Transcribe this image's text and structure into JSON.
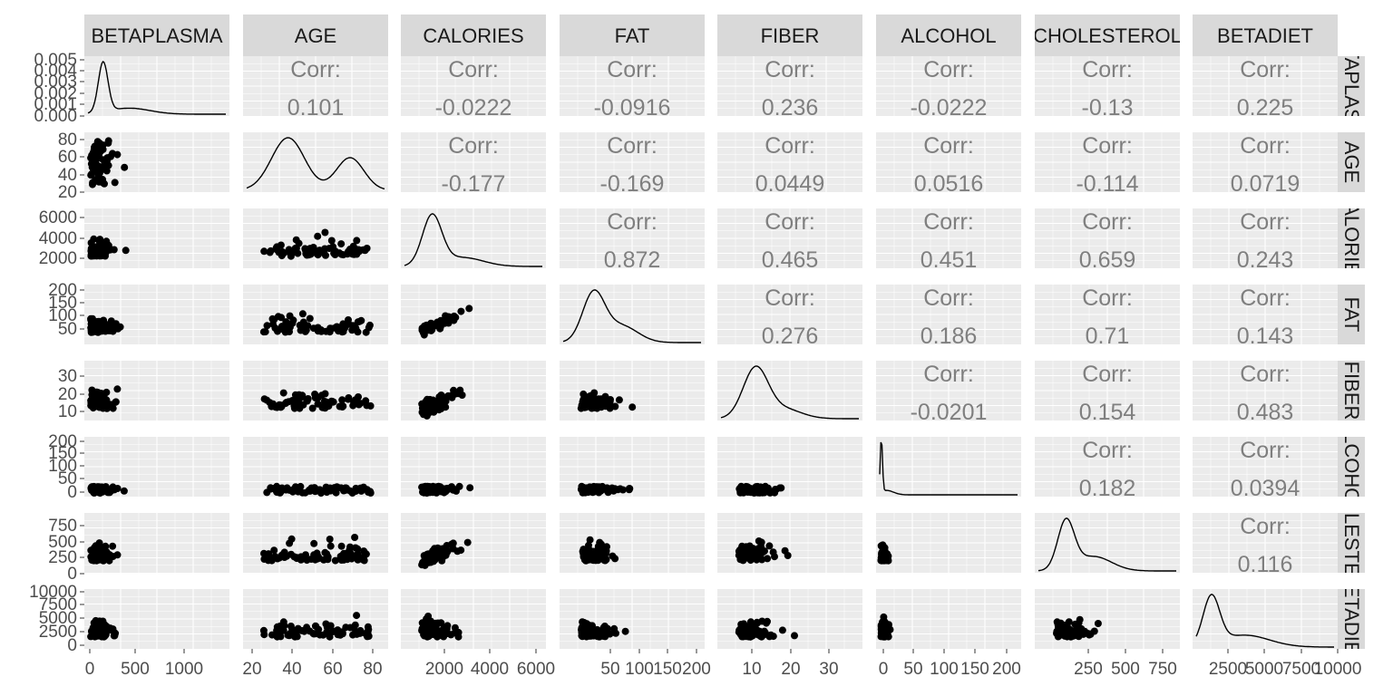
{
  "chart_data": {
    "type": "scatter",
    "subtype": "pairs-matrix",
    "variables": [
      "BETAPLASMA",
      "AGE",
      "CALORIES",
      "FAT",
      "FIBER",
      "ALCOHOL",
      "CHOLESTEROL",
      "BETADIET"
    ],
    "corr_label": "Corr:",
    "correlations": [
      {
        "row": "BETAPLASMA",
        "col": "AGE",
        "value": "0.101"
      },
      {
        "row": "BETAPLASMA",
        "col": "CALORIES",
        "value": "-0.0222"
      },
      {
        "row": "BETAPLASMA",
        "col": "FAT",
        "value": "-0.0916"
      },
      {
        "row": "BETAPLASMA",
        "col": "FIBER",
        "value": "0.236"
      },
      {
        "row": "BETAPLASMA",
        "col": "ALCOHOL",
        "value": "-0.0222"
      },
      {
        "row": "BETAPLASMA",
        "col": "CHOLESTEROL",
        "value": "-0.13"
      },
      {
        "row": "BETAPLASMA",
        "col": "BETADIET",
        "value": "0.225"
      },
      {
        "row": "AGE",
        "col": "CALORIES",
        "value": "-0.177"
      },
      {
        "row": "AGE",
        "col": "FAT",
        "value": "-0.169"
      },
      {
        "row": "AGE",
        "col": "FIBER",
        "value": "0.0449"
      },
      {
        "row": "AGE",
        "col": "ALCOHOL",
        "value": "0.0516"
      },
      {
        "row": "AGE",
        "col": "CHOLESTEROL",
        "value": "-0.114"
      },
      {
        "row": "AGE",
        "col": "BETADIET",
        "value": "0.0719"
      },
      {
        "row": "CALORIES",
        "col": "FAT",
        "value": "0.872"
      },
      {
        "row": "CALORIES",
        "col": "FIBER",
        "value": "0.465"
      },
      {
        "row": "CALORIES",
        "col": "ALCOHOL",
        "value": "0.451"
      },
      {
        "row": "CALORIES",
        "col": "CHOLESTEROL",
        "value": "0.659"
      },
      {
        "row": "CALORIES",
        "col": "BETADIET",
        "value": "0.243"
      },
      {
        "row": "FAT",
        "col": "FIBER",
        "value": "0.276"
      },
      {
        "row": "FAT",
        "col": "ALCOHOL",
        "value": "0.186"
      },
      {
        "row": "FAT",
        "col": "CHOLESTEROL",
        "value": "0.71"
      },
      {
        "row": "FAT",
        "col": "BETADIET",
        "value": "0.143"
      },
      {
        "row": "FIBER",
        "col": "ALCOHOL",
        "value": "-0.0201"
      },
      {
        "row": "FIBER",
        "col": "CHOLESTEROL",
        "value": "0.154"
      },
      {
        "row": "FIBER",
        "col": "BETADIET",
        "value": "0.483"
      },
      {
        "row": "ALCOHOL",
        "col": "CHOLESTEROL",
        "value": "0.182"
      },
      {
        "row": "ALCOHOL",
        "col": "BETADIET",
        "value": "0.0394"
      },
      {
        "row": "CHOLESTEROL",
        "col": "BETADIET",
        "value": "0.116"
      }
    ],
    "x_ticks": {
      "BETAPLASMA": [
        "0",
        "500",
        "1000"
      ],
      "AGE": [
        "20",
        "40",
        "60",
        "80"
      ],
      "CALORIES": [
        "2000",
        "4000",
        "6000"
      ],
      "FAT": [
        "50",
        "100",
        "150",
        "200"
      ],
      "FIBER": [
        "10",
        "20",
        "30"
      ],
      "ALCOHOL": [
        "0",
        "50",
        "100",
        "150",
        "200"
      ],
      "CHOLESTEROL": [
        "250",
        "500",
        "750"
      ],
      "BETADIET": [
        "2500",
        "5000",
        "7500",
        "10000"
      ]
    },
    "y_ticks": {
      "BETAPLASMA": [
        "0.005",
        "0.004",
        "0.003",
        "0.002",
        "0.001",
        "0.000"
      ],
      "AGE": [
        "80",
        "60",
        "40",
        "20"
      ],
      "CALORIES": [
        "6000",
        "4000",
        "2000"
      ],
      "FAT": [
        "200",
        "150",
        "100",
        "50"
      ],
      "FIBER": [
        "30",
        "20",
        "10"
      ],
      "ALCOHOL": [
        "200",
        "150",
        "100",
        "50",
        "0"
      ],
      "CHOLESTEROL": [
        "750",
        "500",
        "250",
        "0"
      ],
      "BETADIET": [
        "10000",
        "7500",
        "5000",
        "2500",
        "0"
      ]
    },
    "grid": true,
    "colors": {
      "panel_bg": "#ebebeb",
      "strip_bg": "#d9d9d9",
      "grid": "#ffffff",
      "points": "#000000",
      "corr_text": "#7f7f7f"
    }
  }
}
